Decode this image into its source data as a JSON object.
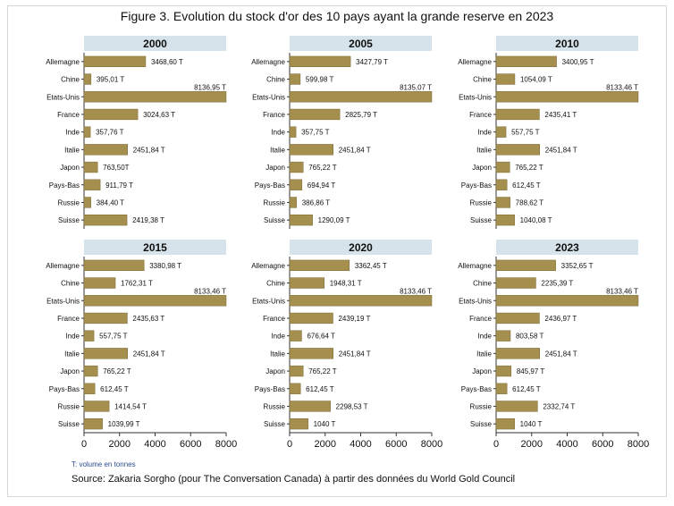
{
  "title": "Figure 3. Evolution du stock d'or des 10 pays ayant la grande reserve en 2023",
  "note": "T: volume en tonnes",
  "source": "Source: Zakaria Sorgho (pour The Conversation Canada) à partir des données du World Gold Council",
  "colors": {
    "bar": "#a58f4e",
    "bar_edge": "#7a6a36",
    "panel_header": "#d7e3ea",
    "text": "#111111"
  },
  "chart_data": {
    "type": "bar",
    "orientation": "horizontal",
    "categories": [
      "Allemagne",
      "Chine",
      "Etats-Unis",
      "France",
      "Inde",
      "Italie",
      "Japon",
      "Pays-Bas",
      "Russie",
      "Suisse"
    ],
    "xlim": [
      0,
      8000
    ],
    "xticks": [
      0,
      2000,
      4000,
      6000,
      8000
    ],
    "xtick_labels": [
      "0",
      "2000",
      "4000",
      "6000",
      "8000"
    ],
    "panels": [
      {
        "title": "2000",
        "values": [
          3468.6,
          395.01,
          8136.95,
          3024.63,
          357.76,
          2451.84,
          763.5,
          911.79,
          384.4,
          2419.38
        ],
        "labels": [
          "3468,60 T",
          "395,01 T",
          "8136,95 T",
          "3024,63 T",
          "357,76 T",
          "2451,84 T",
          "763,50T",
          "911,79 T",
          "384,40 T",
          "2419,38 T"
        ]
      },
      {
        "title": "2005",
        "values": [
          3427.79,
          599.98,
          8135.07,
          2825.79,
          357.75,
          2451.84,
          765.22,
          694.94,
          386.86,
          1290.09
        ],
        "labels": [
          "3427,79 T",
          "599,98 T",
          "8135,07 T",
          "2825,79 T",
          "357,75 T",
          "2451,84 T",
          "765,22 T",
          "694,94 T",
          "386,86 T",
          "1290,09 T"
        ]
      },
      {
        "title": "2010",
        "values": [
          3400.95,
          1054.09,
          8133.46,
          2435.41,
          557.75,
          2451.84,
          765.22,
          612.45,
          788.62,
          1040.08
        ],
        "labels": [
          "3400,95 T",
          "1054,09 T",
          "8133,46 T",
          "2435,41 T",
          "557,75 T",
          "2451,84 T",
          "765,22 T",
          "612,45 T",
          "788,62 T",
          "1040,08 T"
        ]
      },
      {
        "title": "2015",
        "values": [
          3380.98,
          1762.31,
          8133.46,
          2435.63,
          557.75,
          2451.84,
          765.22,
          612.45,
          1414.54,
          1039.99
        ],
        "labels": [
          "3380,98 T",
          "1762,31 T",
          "8133,46 T",
          "2435,63 T",
          "557,75 T",
          "2451,84 T",
          "765,22 T",
          "612,45 T",
          "1414,54 T",
          "1039,99 T"
        ]
      },
      {
        "title": "2020",
        "values": [
          3362.45,
          1948.31,
          8133.46,
          2439.19,
          676.64,
          2451.84,
          765.22,
          612.45,
          2298.53,
          1040
        ],
        "labels": [
          "3362,45 T",
          "1948,31 T",
          "8133,46 T",
          "2439,19 T",
          "676,64 T",
          "2451,84 T",
          "765,22 T",
          "612,45 T",
          "2298,53 T",
          "1040 T"
        ]
      },
      {
        "title": "2023",
        "values": [
          3352.65,
          2235.39,
          8133.46,
          2436.97,
          803.58,
          2451.84,
          845.97,
          612.45,
          2332.74,
          1040
        ],
        "labels": [
          "3352,65 T",
          "2235,39 T",
          "8133,46 T",
          "2436,97 T",
          "803,58 T",
          "2451,84 T",
          "845,97 T",
          "612,45 T",
          "2332,74 T",
          "1040 T"
        ]
      }
    ]
  }
}
